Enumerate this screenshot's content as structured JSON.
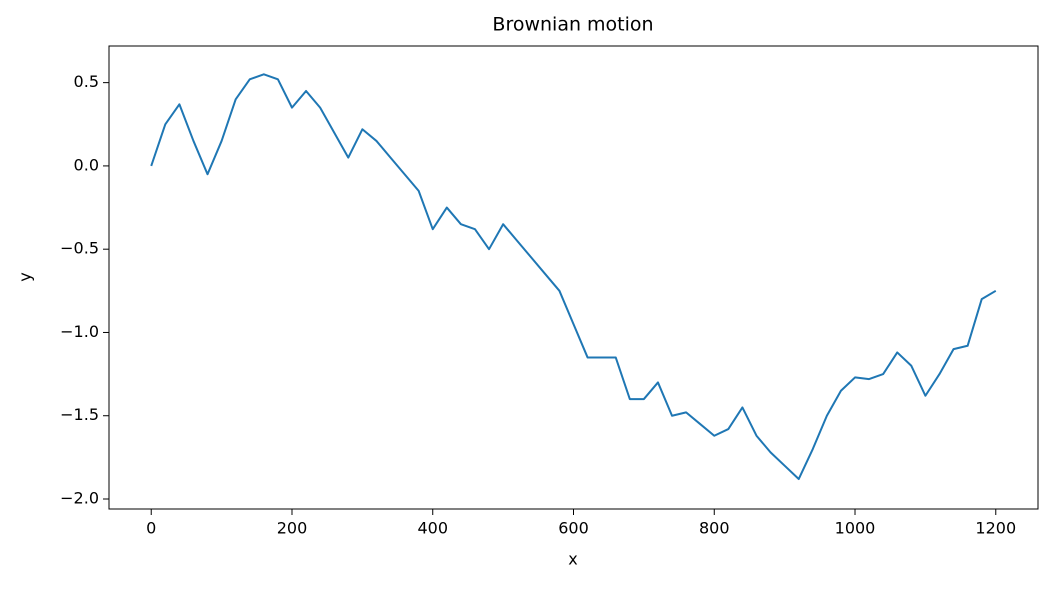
{
  "chart_data": {
    "type": "line",
    "title": "Brownian motion",
    "x_label": "x",
    "y_label": "y",
    "series": [
      {
        "name": "Brownian motion",
        "color": "#1f77b4",
        "x": [
          0,
          20,
          40,
          60,
          80,
          100,
          120,
          140,
          160,
          180,
          200,
          220,
          240,
          260,
          280,
          300,
          320,
          340,
          360,
          380,
          400,
          420,
          440,
          460,
          480,
          500,
          520,
          540,
          560,
          580,
          600,
          620,
          640,
          660,
          680,
          700,
          720,
          740,
          760,
          780,
          800,
          820,
          840,
          860,
          880,
          900,
          920,
          940,
          960,
          980,
          1000,
          1020,
          1040,
          1060,
          1080,
          1100,
          1120,
          1140,
          1160,
          1180,
          1200
        ],
        "values": [
          0.0,
          0.25,
          0.37,
          0.15,
          -0.05,
          0.15,
          0.4,
          0.52,
          0.55,
          0.52,
          0.35,
          0.45,
          0.35,
          0.2,
          0.05,
          0.22,
          0.15,
          0.05,
          -0.05,
          -0.15,
          -0.38,
          -0.25,
          -0.35,
          -0.38,
          -0.5,
          -0.35,
          -0.45,
          -0.55,
          -0.65,
          -0.75,
          -0.95,
          -1.15,
          -1.15,
          -1.15,
          -1.4,
          -1.4,
          -1.3,
          -1.5,
          -1.48,
          -1.55,
          -1.62,
          -1.58,
          -1.45,
          -1.62,
          -1.72,
          -1.8,
          -1.88,
          -1.7,
          -1.5,
          -1.35,
          -1.27,
          -1.28,
          -1.25,
          -1.12,
          -1.2,
          -1.38,
          -1.25,
          -1.1,
          -1.08,
          -0.8,
          -0.75
        ]
      }
    ],
    "xlim": [
      -60,
      1260
    ],
    "ylim": [
      -2.06,
      0.72
    ],
    "xticks": [
      0,
      200,
      400,
      600,
      800,
      1000,
      1200
    ],
    "yticks": [
      {
        "value": -2.0,
        "label": "−2.0"
      },
      {
        "value": -1.5,
        "label": "−1.5"
      },
      {
        "value": -1.0,
        "label": "−1.0"
      },
      {
        "value": -0.5,
        "label": "−0.5"
      },
      {
        "value": 0.0,
        "label": "0.0"
      },
      {
        "value": 0.5,
        "label": "0.5"
      }
    ]
  }
}
